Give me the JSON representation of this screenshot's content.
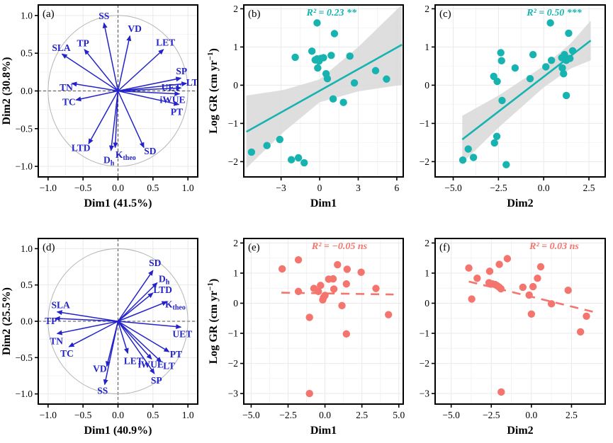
{
  "figure": {
    "colors": {
      "arrow_blue": "#2323c9",
      "teal": "#17b3b0",
      "salmon": "#f4756d",
      "band_gray": "#d8d8d8",
      "grid_major": "#e9e9e9",
      "grid_minor": "#f4f4f4",
      "circle_gray": "#b5b5b5",
      "crosshair_gray": "#4d4d4d",
      "axis_black": "#000000"
    }
  },
  "chart_data": [
    {
      "id": "a",
      "type": "pca",
      "tag": "(a)",
      "xlabel": "Dim1 (41.5%)",
      "ylabel": "Dim2 (30.8%)",
      "xlim": [
        -1.14,
        1.14
      ],
      "ylim": [
        -1.14,
        1.14
      ],
      "xticks": [
        {
          "v": -1.0,
          "t": "−1.0"
        },
        {
          "v": -0.5,
          "t": "−0.5"
        },
        {
          "v": 0,
          "t": "0.0"
        },
        {
          "v": 0.5,
          "t": "0.5"
        },
        {
          "v": 1.0,
          "t": "1.0"
        }
      ],
      "yticks": [
        {
          "v": -1.0,
          "t": "−1.0"
        },
        {
          "v": -0.5,
          "t": "−0.5"
        },
        {
          "v": 0,
          "t": "0.0"
        },
        {
          "v": 0.5,
          "t": "0.5"
        },
        {
          "v": 1.0,
          "t": "1.0"
        }
      ],
      "arrows": [
        {
          "t": "SS",
          "x": -0.2,
          "y": 0.9,
          "lx": -0.2,
          "ly": 0.99
        },
        {
          "t": "VD",
          "x": 0.17,
          "y": 0.73,
          "lx": 0.24,
          "ly": 0.82
        },
        {
          "t": "LET",
          "x": 0.65,
          "y": 0.55,
          "lx": 0.68,
          "ly": 0.64
        },
        {
          "t": "TP",
          "x": -0.48,
          "y": 0.55,
          "lx": -0.5,
          "ly": 0.63
        },
        {
          "t": "SLA",
          "x": -0.8,
          "y": 0.49,
          "lx": -0.81,
          "ly": 0.57
        },
        {
          "t": "SP",
          "x": 0.9,
          "y": 0.17,
          "lx": 0.91,
          "ly": 0.26
        },
        {
          "t": "LT",
          "x": 0.98,
          "y": 0.1,
          "lx": 1.06,
          "ly": 0.11
        },
        {
          "t": "TN",
          "x": -0.66,
          "y": 0.1,
          "lx": -0.74,
          "ly": 0.04
        },
        {
          "t": "UET",
          "x": 0.9,
          "y": 0.04,
          "lx": 0.76,
          "ly": 0.04
        },
        {
          "t": "iWUE",
          "x": 0.88,
          "y": -0.04,
          "lx": 0.78,
          "ly": -0.12
        },
        {
          "t": "TC",
          "x": -0.6,
          "y": -0.12,
          "lx": -0.7,
          "ly": -0.15
        },
        {
          "t": "PT",
          "x": 0.87,
          "y": -0.18,
          "lx": 0.84,
          "ly": -0.28
        },
        {
          "t": "LTD",
          "x": -0.42,
          "y": -0.7,
          "lx": -0.53,
          "ly": -0.76
        },
        {
          "t": "D",
          "sub": "h",
          "x": -0.1,
          "y": -0.79,
          "lx": -0.13,
          "ly": -0.92
        },
        {
          "t": "K",
          "sub": "theo",
          "x": -0.04,
          "y": -0.75,
          "lx": 0.11,
          "ly": -0.85
        },
        {
          "t": "SD",
          "x": 0.37,
          "y": -0.75,
          "lx": 0.46,
          "ly": -0.8
        }
      ]
    },
    {
      "id": "b",
      "type": "scatter",
      "tag": "(b)",
      "annotation": "R² = 0.23 **",
      "ann_x": 0.55,
      "xlabel": "Dim1",
      "ylabel_parts": {
        "pre": "Log GR (cm yr",
        "sup": "−1",
        "post": ")"
      },
      "xlim": [
        -5.9,
        6.5
      ],
      "ylim": [
        -2.4,
        2.1
      ],
      "xticks": [
        {
          "v": -3,
          "t": "−3"
        },
        {
          "v": 0,
          "t": "0"
        },
        {
          "v": 3,
          "t": "3"
        },
        {
          "v": 6,
          "t": "6"
        }
      ],
      "yticks": [
        {
          "v": 2,
          "t": "2"
        },
        {
          "v": 1,
          "t": "1"
        },
        {
          "v": 0,
          "t": "0"
        },
        {
          "v": -1,
          "t": "−1"
        },
        {
          "v": -2,
          "t": "−2"
        }
      ],
      "points": [
        [
          -5.3,
          -1.75
        ],
        [
          -4.1,
          -1.58
        ],
        [
          -3.1,
          -1.42
        ],
        [
          -2.2,
          -1.95
        ],
        [
          -1.65,
          -1.9
        ],
        [
          -1.2,
          -2.03
        ],
        [
          -1.9,
          0.73
        ],
        [
          -0.6,
          0.89
        ],
        [
          -0.35,
          0.66
        ],
        [
          -0.2,
          0.69
        ],
        [
          -0.05,
          0.63
        ],
        [
          0.1,
          0.7
        ],
        [
          -0.15,
          0.45
        ],
        [
          0.3,
          0.72
        ],
        [
          0.5,
          0.3
        ],
        [
          0.6,
          0.17
        ],
        [
          -0.2,
          1.63
        ],
        [
          1.15,
          1.35
        ],
        [
          0.9,
          0.78
        ],
        [
          2.35,
          0.76
        ],
        [
          2.7,
          0.06
        ],
        [
          4.35,
          0.38
        ],
        [
          5.2,
          0.16
        ],
        [
          1.05,
          -0.36
        ],
        [
          1.85,
          -0.45
        ]
      ],
      "fit": {
        "x1": -5.7,
        "y1": -1.22,
        "x2": 6.4,
        "y2": 1.06,
        "dashed": false
      },
      "band": {
        "x": [
          -5.7,
          -2.8,
          0,
          3,
          6.4
        ],
        "half": [
          0.95,
          0.55,
          0.3,
          0.58,
          1.05
        ]
      }
    },
    {
      "id": "c",
      "type": "scatter",
      "tag": "(c)",
      "annotation": "R² = 0.50 ***",
      "ann_x": 0.7,
      "xlabel": "Dim2",
      "ylabel_parts": null,
      "xlim": [
        -6.0,
        3.4
      ],
      "ylim": [
        -2.4,
        2.1
      ],
      "xticks": [
        {
          "v": -5,
          "t": "−5.0"
        },
        {
          "v": -2.5,
          "t": "−2.5"
        },
        {
          "v": 0,
          "t": "0.0"
        },
        {
          "v": 2.5,
          "t": "2.5"
        }
      ],
      "yticks": [
        {
          "v": 2,
          "t": "2"
        },
        {
          "v": 1,
          "t": "1"
        },
        {
          "v": 0,
          "t": "0"
        },
        {
          "v": -1,
          "t": "−1"
        },
        {
          "v": -2,
          "t": "−2"
        }
      ],
      "points": [
        [
          0.37,
          1.63
        ],
        [
          1.38,
          1.36
        ],
        [
          -2.37,
          0.85
        ],
        [
          -2.33,
          0.64
        ],
        [
          -0.59,
          0.8
        ],
        [
          0.43,
          0.65
        ],
        [
          1.0,
          0.72
        ],
        [
          1.15,
          0.8
        ],
        [
          1.25,
          0.65
        ],
        [
          1.45,
          0.7
        ],
        [
          1.6,
          0.9
        ],
        [
          0.12,
          0.48
        ],
        [
          1.03,
          0.45
        ],
        [
          1.1,
          0.3
        ],
        [
          -1.58,
          0.45
        ],
        [
          -0.75,
          0.17
        ],
        [
          -2.76,
          0.23
        ],
        [
          -2.57,
          0.1
        ],
        [
          -2.3,
          -0.4
        ],
        [
          1.25,
          -0.27
        ],
        [
          -2.59,
          -1.34
        ],
        [
          -2.72,
          -1.51
        ],
        [
          -4.17,
          -1.67
        ],
        [
          -4.47,
          -1.96
        ],
        [
          -3.88,
          -1.89
        ],
        [
          -2.07,
          -2.08
        ]
      ],
      "fit": {
        "x1": -4.5,
        "y1": -1.42,
        "x2": 2.6,
        "y2": 1.17,
        "dashed": false
      },
      "band": {
        "x": [
          -4.5,
          -2.5,
          0,
          1.5,
          2.6
        ],
        "half": [
          0.62,
          0.42,
          0.28,
          0.33,
          0.52
        ]
      }
    },
    {
      "id": "d",
      "type": "pca",
      "tag": "(d)",
      "xlabel": "Dim1 (40.9%)",
      "ylabel": "Dim2 (25.5%)",
      "xlim": [
        -1.14,
        1.14
      ],
      "ylim": [
        -1.14,
        1.14
      ],
      "xticks": [
        {
          "v": -1.0,
          "t": "−1.0"
        },
        {
          "v": -0.5,
          "t": "−0.5"
        },
        {
          "v": 0,
          "t": "0.0"
        },
        {
          "v": 0.5,
          "t": "0.5"
        },
        {
          "v": 1.0,
          "t": "1.0"
        }
      ],
      "yticks": [
        {
          "v": -1.0,
          "t": "−1.0"
        },
        {
          "v": -0.5,
          "t": "−0.5"
        },
        {
          "v": 0,
          "t": "0.0"
        },
        {
          "v": 0.5,
          "t": "0.5"
        },
        {
          "v": 1.0,
          "t": "1.0"
        }
      ],
      "arrows": [
        {
          "t": "SD",
          "x": 0.5,
          "y": 0.7,
          "lx": 0.53,
          "ly": 0.8
        },
        {
          "t": "D",
          "sub": "h",
          "x": 0.56,
          "y": 0.53,
          "lx": 0.66,
          "ly": 0.58
        },
        {
          "t": "LTD",
          "x": 0.5,
          "y": 0.39,
          "lx": 0.64,
          "ly": 0.43
        },
        {
          "t": "K",
          "sub": "theo",
          "x": 0.7,
          "y": 0.27,
          "lx": 0.82,
          "ly": 0.23
        },
        {
          "t": "SLA",
          "x": -0.87,
          "y": 0.13,
          "lx": -0.82,
          "ly": 0.22
        },
        {
          "t": "TP",
          "x": -0.9,
          "y": 0.04,
          "lx": -0.96,
          "ly": 0.0
        },
        {
          "t": "TN",
          "x": -0.87,
          "y": -0.17,
          "lx": -0.88,
          "ly": -0.28
        },
        {
          "t": "TC",
          "x": -0.7,
          "y": -0.35,
          "lx": -0.73,
          "ly": -0.45
        },
        {
          "t": "UET",
          "x": 0.9,
          "y": -0.08,
          "lx": 0.92,
          "ly": -0.18
        },
        {
          "t": "PT",
          "x": 0.73,
          "y": -0.42,
          "lx": 0.83,
          "ly": -0.46
        },
        {
          "t": "LET",
          "x": 0.14,
          "y": -0.44,
          "lx": 0.22,
          "ly": -0.55
        },
        {
          "t": "iWUE",
          "x": 0.48,
          "y": -0.52,
          "lx": 0.47,
          "ly": -0.6
        },
        {
          "t": "LT",
          "x": 0.62,
          "y": -0.56,
          "lx": 0.73,
          "ly": -0.62
        },
        {
          "t": "VD",
          "x": -0.16,
          "y": -0.62,
          "lx": -0.26,
          "ly": -0.66
        },
        {
          "t": "SP",
          "x": 0.52,
          "y": -0.72,
          "lx": 0.55,
          "ly": -0.82
        },
        {
          "t": "SS",
          "x": -0.19,
          "y": -0.87,
          "lx": -0.22,
          "ly": -0.96
        }
      ]
    },
    {
      "id": "e",
      "type": "scatter",
      "tag": "(e)",
      "annotation": "R² = −0.05 ns",
      "ann_x": 0.6,
      "xlabel": "Dim1",
      "ylabel_parts": {
        "pre": "Log GR (cm yr",
        "sup": "−1",
        "post": ")"
      },
      "xlim": [
        -5.5,
        5.3
      ],
      "ylim": [
        -3.35,
        2.15
      ],
      "xticks": [
        {
          "v": -5,
          "t": "−5.0"
        },
        {
          "v": -2.5,
          "t": "−2.5"
        },
        {
          "v": 0,
          "t": "0.0"
        },
        {
          "v": 2.5,
          "t": "2.5"
        },
        {
          "v": 5,
          "t": "5.0"
        }
      ],
      "yticks": [
        {
          "v": 2,
          "t": "2"
        },
        {
          "v": 1,
          "t": "1"
        },
        {
          "v": 0,
          "t": "0"
        },
        {
          "v": -1,
          "t": "−1"
        },
        {
          "v": -2,
          "t": "−2"
        },
        {
          "v": -3,
          "t": "−3"
        }
      ],
      "points": [
        [
          -2.9,
          1.14
        ],
        [
          -1.8,
          1.44
        ],
        [
          0.85,
          1.28
        ],
        [
          1.5,
          1.13
        ],
        [
          2.45,
          1.03
        ],
        [
          0.25,
          0.8
        ],
        [
          0.55,
          0.81
        ],
        [
          1.45,
          0.64
        ],
        [
          -0.75,
          0.49
        ],
        [
          -0.3,
          0.59
        ],
        [
          -0.45,
          0.39
        ],
        [
          0.6,
          0.47
        ],
        [
          -1.8,
          0.39
        ],
        [
          3.45,
          0.49
        ],
        [
          -0.1,
          0.19
        ],
        [
          0.0,
          0.26
        ],
        [
          -0.15,
          0.11
        ],
        [
          1.15,
          -0.08
        ],
        [
          -1.05,
          -0.47
        ],
        [
          4.3,
          -0.38
        ],
        [
          1.45,
          -1.02
        ],
        [
          -1.05,
          -3.0
        ]
      ],
      "fit": {
        "x1": -2.95,
        "y1": 0.35,
        "x2": 4.65,
        "y2": 0.29,
        "dashed": true
      },
      "band": null
    },
    {
      "id": "f",
      "type": "scatter",
      "tag": "(f)",
      "annotation": "R² = 0.03 ns",
      "ann_x": 0.7,
      "xlabel": "Dim2",
      "ylabel_parts": null,
      "xlim": [
        -6.0,
        4.6
      ],
      "ylim": [
        -3.35,
        2.15
      ],
      "xticks": [
        {
          "v": -5,
          "t": "−5.0"
        },
        {
          "v": -2.5,
          "t": "−2.5"
        },
        {
          "v": 0,
          "t": "0.0"
        },
        {
          "v": 2.5,
          "t": "2.5"
        }
      ],
      "yticks": [
        {
          "v": 2,
          "t": "2"
        },
        {
          "v": 1,
          "t": "1"
        },
        {
          "v": 0,
          "t": "0"
        },
        {
          "v": -1,
          "t": "−1"
        },
        {
          "v": -2,
          "t": "−2"
        },
        {
          "v": -3,
          "t": "−3"
        }
      ],
      "points": [
        [
          -3.9,
          1.17
        ],
        [
          -3.72,
          0.14
        ],
        [
          -3.38,
          0.83
        ],
        [
          -2.6,
          1.06
        ],
        [
          -2.0,
          1.29
        ],
        [
          -1.5,
          1.48
        ],
        [
          -2.64,
          0.68
        ],
        [
          -2.43,
          0.64
        ],
        [
          -2.26,
          0.62
        ],
        [
          -2.13,
          0.58
        ],
        [
          -2.0,
          0.53
        ],
        [
          -1.9,
          0.48
        ],
        [
          -0.53,
          0.53
        ],
        [
          -0.14,
          0.27
        ],
        [
          0.1,
          0.55
        ],
        [
          0.38,
          0.83
        ],
        [
          0.58,
          1.21
        ],
        [
          0.0,
          -0.36
        ],
        [
          1.25,
          -0.02
        ],
        [
          2.29,
          0.43
        ],
        [
          3.43,
          -0.43
        ],
        [
          3.06,
          -0.95
        ],
        [
          -1.88,
          -2.95
        ]
      ],
      "fit": {
        "x1": -3.9,
        "y1": 0.72,
        "x2": 4.2,
        "y2": -0.33,
        "dashed": true
      },
      "band": null
    }
  ]
}
